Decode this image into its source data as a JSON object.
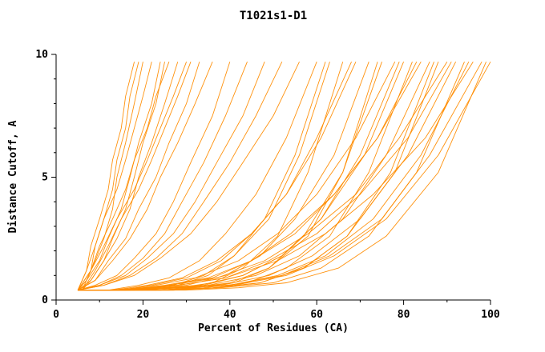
{
  "title": "T1021s1-D1",
  "chart_data": {
    "type": "line",
    "title": "T1021s1-D1",
    "xlabel": "Percent of Residues (CA)",
    "ylabel": "Distance Cutoff, A",
    "xlim": [
      0,
      100
    ],
    "ylim": [
      0,
      10
    ],
    "xticks_major": [
      0,
      20,
      40,
      60,
      80,
      100
    ],
    "xticks_minor": [
      10,
      30,
      50,
      70,
      90
    ],
    "yticks_major": [
      0,
      5,
      10
    ],
    "yticks_minor": [
      1,
      2,
      3,
      4,
      6,
      7,
      8,
      9
    ],
    "line_color": "#ff8c00",
    "legend": "none",
    "grid": false,
    "series": [
      {
        "x": [
          5,
          7,
          8,
          10,
          12,
          13,
          15,
          16,
          18
        ],
        "y": [
          0.4,
          1.2,
          2.2,
          3.3,
          4.5,
          5.7,
          7.0,
          8.3,
          9.7
        ]
      },
      {
        "x": [
          6,
          8,
          9,
          11,
          13,
          14,
          16,
          17,
          19
        ],
        "y": [
          0.4,
          1.2,
          2.2,
          3.3,
          4.5,
          5.7,
          7.0,
          8.3,
          9.7
        ]
      },
      {
        "x": [
          5,
          7,
          9,
          11,
          13,
          14,
          16,
          18,
          20
        ],
        "y": [
          0.4,
          0.8,
          1.6,
          2.5,
          3.7,
          5.0,
          6.4,
          8.0,
          9.7
        ]
      },
      {
        "x": [
          5,
          7,
          9,
          11,
          14,
          16,
          18,
          20,
          22
        ],
        "y": [
          0.4,
          1.2,
          2.2,
          3.3,
          4.5,
          5.7,
          7.0,
          8.3,
          9.7
        ]
      },
      {
        "x": [
          5,
          7,
          10,
          12,
          15,
          17,
          19,
          22,
          24
        ],
        "y": [
          0.4,
          0.8,
          1.6,
          2.5,
          3.7,
          5.0,
          6.4,
          8.0,
          9.7
        ]
      },
      {
        "x": [
          6,
          8,
          11,
          13,
          16,
          18,
          20,
          23,
          25
        ],
        "y": [
          0.4,
          0.8,
          1.6,
          2.5,
          3.7,
          5.0,
          6.4,
          8.0,
          9.7
        ]
      },
      {
        "x": [
          5,
          8,
          10,
          13,
          16,
          18,
          21,
          23,
          26
        ],
        "y": [
          0.4,
          1.2,
          2.2,
          3.3,
          4.5,
          5.7,
          7.0,
          8.3,
          9.7
        ]
      },
      {
        "x": [
          5,
          8,
          11,
          14,
          17,
          19,
          22,
          25,
          28
        ],
        "y": [
          0.4,
          0.8,
          1.6,
          2.5,
          3.7,
          5.0,
          6.4,
          8.0,
          9.7
        ]
      },
      {
        "x": [
          5,
          8,
          11,
          14,
          18,
          21,
          24,
          27,
          30
        ],
        "y": [
          0.4,
          1.2,
          2.2,
          3.3,
          4.5,
          5.7,
          7.0,
          8.3,
          9.7
        ]
      },
      {
        "x": [
          6,
          9,
          12,
          15,
          19,
          22,
          25,
          28,
          31
        ],
        "y": [
          0.4,
          1.2,
          2.2,
          3.3,
          4.5,
          5.7,
          7.0,
          8.3,
          9.7
        ]
      },
      {
        "x": [
          5,
          9,
          12,
          16,
          19,
          23,
          26,
          30,
          33
        ],
        "y": [
          0.4,
          0.8,
          1.6,
          2.5,
          3.7,
          5.0,
          6.4,
          8.0,
          9.7
        ]
      },
      {
        "x": [
          5,
          9,
          13,
          17,
          21,
          24,
          28,
          32,
          36
        ],
        "y": [
          0.4,
          0.8,
          1.6,
          2.5,
          3.7,
          5.0,
          6.4,
          8.0,
          9.7
        ]
      },
      {
        "x": [
          5,
          9,
          14,
          18,
          23,
          27,
          31,
          36,
          40
        ],
        "y": [
          0.4,
          0.6,
          1.0,
          1.7,
          2.7,
          4.0,
          5.6,
          7.5,
          9.7
        ]
      },
      {
        "x": [
          5,
          10,
          15,
          20,
          25,
          29,
          34,
          39,
          44
        ],
        "y": [
          0.4,
          0.6,
          1.0,
          1.7,
          2.7,
          4.0,
          5.6,
          7.5,
          9.7
        ]
      },
      {
        "x": [
          5,
          10,
          16,
          21,
          27,
          32,
          37,
          43,
          48
        ],
        "y": [
          0.4,
          0.6,
          1.0,
          1.7,
          2.7,
          4.0,
          5.6,
          7.5,
          9.7
        ]
      },
      {
        "x": [
          5,
          11,
          17,
          23,
          29,
          34,
          40,
          46,
          52
        ],
        "y": [
          0.4,
          0.6,
          1.0,
          1.7,
          2.7,
          4.0,
          5.6,
          7.5,
          9.7
        ]
      },
      {
        "x": [
          5,
          11,
          18,
          24,
          31,
          37,
          43,
          50,
          56
        ],
        "y": [
          0.4,
          0.6,
          1.0,
          1.7,
          2.7,
          4.0,
          5.6,
          7.5,
          9.7
        ]
      },
      {
        "x": [
          5,
          12,
          19,
          26,
          33,
          39,
          46,
          53,
          60
        ],
        "y": [
          0.4,
          0.4,
          0.6,
          0.9,
          1.6,
          2.7,
          4.3,
          6.6,
          9.7
        ]
      },
      {
        "x": [
          5,
          12,
          20,
          27,
          34,
          41,
          49,
          56,
          63
        ],
        "y": [
          0.4,
          0.4,
          0.5,
          0.6,
          1.0,
          1.8,
          3.3,
          5.9,
          9.7
        ]
      },
      {
        "x": [
          5,
          13,
          20,
          28,
          36,
          43,
          51,
          58,
          66
        ],
        "y": [
          0.4,
          0.4,
          0.4,
          0.5,
          0.7,
          1.3,
          2.6,
          5.2,
          9.7
        ]
      },
      {
        "x": [
          5,
          13,
          21,
          29,
          37,
          45,
          53,
          61,
          69
        ],
        "y": [
          0.4,
          0.4,
          0.6,
          0.9,
          1.6,
          2.7,
          4.3,
          6.6,
          9.7
        ]
      },
      {
        "x": [
          5,
          13,
          22,
          30,
          39,
          47,
          55,
          64,
          72
        ],
        "y": [
          0.4,
          0.4,
          0.5,
          0.6,
          1.0,
          1.8,
          3.3,
          5.9,
          9.7
        ]
      },
      {
        "x": [
          5,
          14,
          23,
          31,
          40,
          49,
          58,
          66,
          75
        ],
        "y": [
          0.4,
          0.4,
          0.4,
          0.5,
          0.7,
          1.3,
          2.6,
          5.2,
          9.7
        ]
      },
      {
        "x": [
          5,
          14,
          23,
          32,
          42,
          51,
          60,
          69,
          78
        ],
        "y": [
          0.4,
          0.4,
          0.6,
          0.9,
          1.6,
          2.7,
          4.3,
          6.6,
          9.7
        ]
      },
      {
        "x": [
          5,
          14,
          24,
          33,
          43,
          52,
          61,
          71,
          80
        ],
        "y": [
          0.4,
          0.4,
          0.5,
          0.6,
          1.0,
          1.8,
          3.3,
          5.9,
          9.7
        ]
      },
      {
        "x": [
          5,
          15,
          24,
          34,
          44,
          53,
          63,
          72,
          82
        ],
        "y": [
          0.4,
          0.4,
          0.4,
          0.5,
          0.7,
          1.3,
          2.6,
          5.2,
          9.7
        ]
      },
      {
        "x": [
          5,
          15,
          25,
          35,
          45,
          54,
          64,
          74,
          84
        ],
        "y": [
          0.4,
          0.4,
          0.6,
          0.9,
          1.6,
          2.7,
          4.3,
          6.6,
          9.7
        ]
      },
      {
        "x": [
          5,
          15,
          25,
          35,
          46,
          56,
          66,
          76,
          86
        ],
        "y": [
          0.4,
          0.4,
          0.5,
          0.6,
          1.0,
          1.8,
          3.3,
          5.9,
          9.7
        ]
      },
      {
        "x": [
          5,
          15,
          26,
          36,
          47,
          57,
          67,
          78,
          88
        ],
        "y": [
          0.4,
          0.4,
          0.4,
          0.5,
          0.7,
          1.3,
          2.6,
          5.2,
          9.7
        ]
      },
      {
        "x": [
          5,
          16,
          26,
          37,
          48,
          58,
          69,
          79,
          90
        ],
        "y": [
          0.4,
          0.4,
          0.6,
          0.9,
          1.6,
          2.7,
          4.3,
          6.6,
          9.7
        ]
      },
      {
        "x": [
          5,
          16,
          27,
          38,
          49,
          59,
          70,
          81,
          92
        ],
        "y": [
          0.4,
          0.4,
          0.5,
          0.6,
          1.0,
          1.8,
          3.3,
          5.9,
          9.7
        ]
      },
      {
        "x": [
          5,
          16,
          27,
          38,
          50,
          61,
          72,
          83,
          94
        ],
        "y": [
          0.4,
          0.4,
          0.4,
          0.5,
          0.7,
          1.3,
          2.6,
          5.2,
          9.7
        ]
      },
      {
        "x": [
          5,
          16,
          28,
          39,
          51,
          62,
          73,
          85,
          96
        ],
        "y": [
          0.4,
          0.4,
          0.6,
          0.9,
          1.6,
          2.7,
          4.3,
          6.6,
          9.7
        ]
      },
      {
        "x": [
          5,
          17,
          28,
          40,
          52,
          63,
          75,
          86,
          98
        ],
        "y": [
          0.4,
          0.4,
          0.5,
          0.6,
          1.0,
          1.8,
          3.3,
          5.9,
          9.7
        ]
      },
      {
        "x": [
          5,
          17,
          29,
          41,
          53,
          64,
          76,
          88,
          100
        ],
        "y": [
          0.4,
          0.4,
          0.5,
          0.6,
          1.0,
          1.8,
          3.3,
          5.9,
          9.7
        ]
      },
      {
        "x": [
          7,
          14,
          21,
          28,
          35,
          41,
          48,
          55,
          62
        ],
        "y": [
          0.4,
          0.4,
          0.5,
          0.6,
          1.0,
          1.8,
          3.3,
          5.9,
          9.7
        ]
      },
      {
        "x": [
          7,
          15,
          22,
          30,
          38,
          45,
          53,
          60,
          68
        ],
        "y": [
          0.4,
          0.4,
          0.6,
          0.9,
          1.6,
          2.7,
          4.3,
          6.6,
          9.7
        ]
      },
      {
        "x": [
          7,
          15,
          24,
          32,
          41,
          49,
          57,
          66,
          74
        ],
        "y": [
          0.4,
          0.4,
          0.4,
          0.5,
          0.7,
          1.3,
          2.6,
          5.2,
          9.7
        ]
      },
      {
        "x": [
          7,
          16,
          25,
          34,
          43,
          52,
          61,
          70,
          79
        ],
        "y": [
          0.4,
          0.4,
          0.5,
          0.6,
          1.0,
          1.8,
          3.3,
          5.9,
          9.7
        ]
      },
      {
        "x": [
          7,
          17,
          26,
          36,
          45,
          55,
          64,
          74,
          83
        ],
        "y": [
          0.4,
          0.4,
          0.6,
          0.9,
          1.6,
          2.7,
          4.3,
          6.6,
          9.7
        ]
      },
      {
        "x": [
          7,
          17,
          27,
          37,
          47,
          57,
          67,
          77,
          87
        ],
        "y": [
          0.4,
          0.4,
          0.4,
          0.5,
          0.7,
          1.3,
          2.6,
          5.2,
          9.7
        ]
      },
      {
        "x": [
          7,
          18,
          28,
          39,
          49,
          60,
          70,
          81,
          91
        ],
        "y": [
          0.4,
          0.4,
          0.6,
          0.9,
          1.6,
          2.7,
          4.3,
          6.6,
          9.7
        ]
      },
      {
        "x": [
          7,
          18,
          29,
          40,
          51,
          62,
          73,
          84,
          95
        ],
        "y": [
          0.4,
          0.4,
          0.5,
          0.6,
          1.0,
          1.8,
          3.3,
          5.9,
          9.7
        ]
      },
      {
        "x": [
          7,
          19,
          30,
          42,
          53,
          65,
          76,
          88,
          99
        ],
        "y": [
          0.4,
          0.4,
          0.4,
          0.5,
          0.7,
          1.3,
          2.6,
          5.2,
          9.7
        ]
      }
    ]
  }
}
